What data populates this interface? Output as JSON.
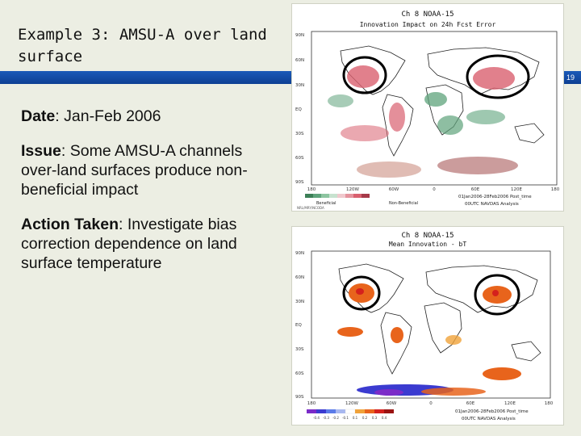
{
  "title": "Example 3: AMSU-A over land surface",
  "page_number": "19",
  "date": {
    "label": "Date",
    "value": "Jan-Feb 2006"
  },
  "issue": {
    "label": "Issue",
    "value": "Some AMSU-A channels over-land surfaces produce non-beneficial impact"
  },
  "action": {
    "label": "Action Taken",
    "value": "Investigate bias correction dependence on land surface temperature"
  },
  "map_top": {
    "header": "Ch 8   NOAA-15",
    "subtitle": "Innovation Impact on 24h Fcst Error",
    "lat_labels": [
      "90N",
      "60N",
      "30N",
      "EQ",
      "30S",
      "60S",
      "90S"
    ],
    "lon_labels": [
      "180",
      "120W",
      "60W",
      "0",
      "60E",
      "120E",
      "180"
    ],
    "legend_left": "Beneficial",
    "legend_right": "Non-Beneficial",
    "period": "01Jan2006-28Feb2006  Post_time",
    "credit": "00UTC NAVDAS Analysis",
    "source": "NRL/MRY/NCODA"
  },
  "map_bottom": {
    "header": "Ch 8   NOAA-15",
    "subtitle": "Mean Innovation - bT",
    "lat_labels": [
      "90N",
      "60N",
      "30N",
      "EQ",
      "30S",
      "60S",
      "90S"
    ],
    "lon_labels": [
      "180",
      "120W",
      "60W",
      "0",
      "60E",
      "120E",
      "180"
    ],
    "legend_ticks": [
      "-0.4",
      "-0.3",
      "-0.2",
      "-0.1",
      "0.1",
      "0.2",
      "0.3",
      "0.4"
    ],
    "period": "01Jan2006-28Feb2006  Post_time",
    "credit": "00UTC NAVDAS Analysis"
  }
}
